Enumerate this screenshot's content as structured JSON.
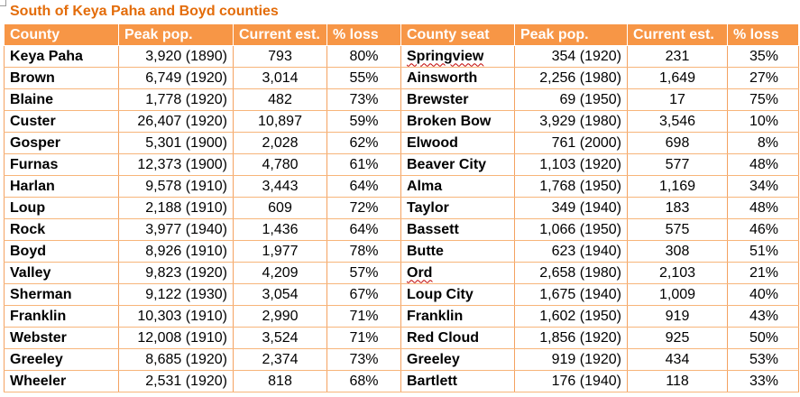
{
  "title": "South of Keya Paha and Boyd counties",
  "headers": [
    "County",
    "Peak pop.",
    "Current est.",
    "% loss",
    "County seat",
    "Peak pop.",
    "Current est.",
    "% loss"
  ],
  "rows": [
    {
      "county": "Keya Paha",
      "peak": "3,920 (1890)",
      "current": "793",
      "loss": "80%",
      "seat": "Springview",
      "seat_peak": "354 (1920)",
      "seat_current": "231",
      "seat_loss": "35%"
    },
    {
      "county": "Brown",
      "peak": "6,749 (1920)",
      "current": "3,014",
      "loss": "55%",
      "seat": "Ainsworth",
      "seat_peak": "2,256 (1980)",
      "seat_current": "1,649",
      "seat_loss": "27%"
    },
    {
      "county": "Blaine",
      "peak": "1,778 (1920)",
      "current": "482",
      "loss": "73%",
      "seat": "Brewster",
      "seat_peak": "69 (1950)",
      "seat_current": "17",
      "seat_loss": "75%"
    },
    {
      "county": "Custer",
      "peak": "26,407 (1920)",
      "current": "10,897",
      "loss": "59%",
      "seat": "Broken Bow",
      "seat_peak": "3,929 (1980)",
      "seat_current": "3,546",
      "seat_loss": "10%"
    },
    {
      "county": "Gosper",
      "peak": "5,301 (1900)",
      "current": "2,028",
      "loss": "62%",
      "seat": "Elwood",
      "seat_peak": "761 (2000)",
      "seat_current": "698",
      "seat_loss": "8%"
    },
    {
      "county": "Furnas",
      "peak": "12,373 (1900)",
      "current": "4,780",
      "loss": "61%",
      "seat": "Beaver City",
      "seat_peak": "1,103 (1920)",
      "seat_current": "577",
      "seat_loss": "48%"
    },
    {
      "county": "Harlan",
      "peak": "9,578 (1910)",
      "current": "3,443",
      "loss": "64%",
      "seat": "Alma",
      "seat_peak": "1,768 (1950)",
      "seat_current": "1,169",
      "seat_loss": "34%"
    },
    {
      "county": "Loup",
      "peak": "2,188 (1910)",
      "current": "609",
      "loss": "72%",
      "seat": "Taylor",
      "seat_peak": "349 (1940)",
      "seat_current": "183",
      "seat_loss": "48%"
    },
    {
      "county": "Rock",
      "peak": "3,977 (1940)",
      "current": "1,436",
      "loss": "64%",
      "seat": "Bassett",
      "seat_peak": "1,066 (1950)",
      "seat_current": "575",
      "seat_loss": "46%"
    },
    {
      "county": "Boyd",
      "peak": "8,926 (1910)",
      "current": "1,977",
      "loss": "78%",
      "seat": "Butte",
      "seat_peak": "623 (1940)",
      "seat_current": "308",
      "seat_loss": "51%"
    },
    {
      "county": "Valley",
      "peak": "9,823 (1920)",
      "current": "4,209",
      "loss": "57%",
      "seat": "Ord",
      "seat_peak": "2,658 (1980)",
      "seat_current": "2,103",
      "seat_loss": "21%"
    },
    {
      "county": "Sherman",
      "peak": "9,122 (1930)",
      "current": "3,054",
      "loss": "67%",
      "seat": "Loup City",
      "seat_peak": "1,675 (1940)",
      "seat_current": "1,009",
      "seat_loss": "40%"
    },
    {
      "county": "Franklin",
      "peak": "10,303 (1910)",
      "current": "2,990",
      "loss": "71%",
      "seat": "Franklin",
      "seat_peak": "1,602 (1950)",
      "seat_current": "919",
      "seat_loss": "43%"
    },
    {
      "county": "Webster",
      "peak": "12,008 (1910)",
      "current": "3,524",
      "loss": "71%",
      "seat": "Red Cloud",
      "seat_peak": "1,856 (1920)",
      "seat_current": "925",
      "seat_loss": "50%"
    },
    {
      "county": "Greeley",
      "peak": "8,685 (1920)",
      "current": "2,374",
      "loss": "73%",
      "seat": "Greeley",
      "seat_peak": "919 (1920)",
      "seat_current": "434",
      "seat_loss": "53%"
    },
    {
      "county": "Wheeler",
      "peak": "2,531 (1920)",
      "current": "818",
      "loss": "68%",
      "seat": "Bartlett",
      "seat_peak": "176 (1940)",
      "seat_current": "118",
      "seat_loss": "33%"
    }
  ],
  "colors": {
    "header_bg": "#f79646",
    "title": "#e36c0a",
    "border": "#f6b26b"
  }
}
